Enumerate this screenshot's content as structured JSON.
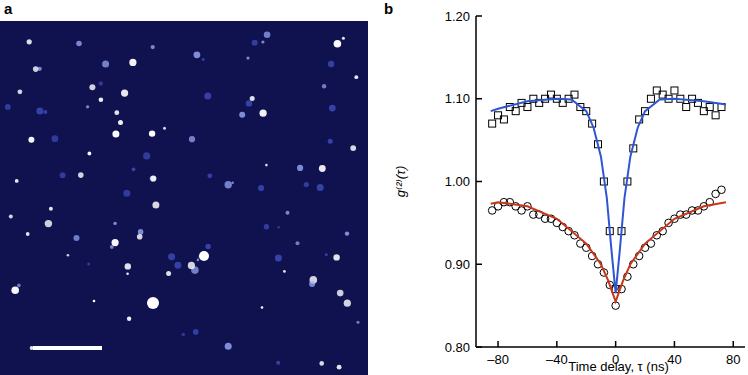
{
  "image_panel": {
    "label": "a"
  },
  "chart_data": {
    "type": "scatter",
    "panel_label": "b",
    "x_label": "Time delay, τ (ns)",
    "y_label": "g⁽²⁾(τ)",
    "xlim": [
      -95,
      88
    ],
    "ylim": [
      0.8,
      1.2
    ],
    "xticks": [
      {
        "value": -80,
        "label": "–80"
      },
      {
        "value": -40,
        "label": "–40"
      },
      0,
      40,
      80
    ],
    "yticks": [
      {
        "value": 0.8,
        "label": "0.80"
      },
      {
        "value": 0.9,
        "label": "0.90"
      },
      {
        "value": 1,
        "label": "1.00"
      },
      {
        "value": 1.1,
        "label": "1.10"
      },
      {
        "value": 1.2,
        "label": "1.20"
      }
    ],
    "grid": false,
    "series": [
      {
        "type": "scatter",
        "marker": "square",
        "color": "#000000",
        "x": [
          -84,
          -80,
          -76,
          -72,
          -68,
          -64,
          -60,
          -56,
          -52,
          -48,
          -44,
          -40,
          -36,
          -32,
          -28,
          -24,
          -20,
          -16,
          -12,
          -8,
          -4,
          0,
          4,
          8,
          12,
          16,
          20,
          24,
          28,
          32,
          36,
          40,
          44,
          48,
          52,
          56,
          60,
          64,
          68,
          72
        ],
        "values": [
          1.07,
          1.08,
          1.075,
          1.09,
          1.085,
          1.095,
          1.09,
          1.1,
          1.095,
          1.1,
          1.105,
          1.1,
          1.095,
          1.1,
          1.105,
          1.09,
          1.085,
          1.07,
          1.045,
          1.0,
          0.94,
          0.87,
          0.94,
          1.0,
          1.04,
          1.075,
          1.085,
          1.1,
          1.11,
          1.105,
          1.1,
          1.11,
          1.1,
          1.09,
          1.1,
          1.095,
          1.085,
          1.09,
          1.08,
          1.09
        ]
      },
      {
        "type": "scatter",
        "marker": "circle",
        "color": "#000000",
        "x": [
          -84,
          -80,
          -76,
          -72,
          -68,
          -64,
          -60,
          -56,
          -52,
          -48,
          -44,
          -40,
          -36,
          -32,
          -28,
          -24,
          -20,
          -16,
          -12,
          -8,
          -4,
          0,
          4,
          8,
          12,
          16,
          20,
          24,
          28,
          32,
          36,
          40,
          44,
          48,
          52,
          56,
          60,
          64,
          68,
          72
        ],
        "values": [
          0.965,
          0.97,
          0.975,
          0.975,
          0.97,
          0.965,
          0.97,
          0.96,
          0.96,
          0.955,
          0.955,
          0.95,
          0.945,
          0.94,
          0.935,
          0.925,
          0.92,
          0.91,
          0.9,
          0.89,
          0.875,
          0.85,
          0.87,
          0.885,
          0.9,
          0.91,
          0.92,
          0.925,
          0.935,
          0.94,
          0.95,
          0.955,
          0.96,
          0.96,
          0.965,
          0.965,
          0.97,
          0.975,
          0.985,
          0.99
        ]
      },
      {
        "type": "line",
        "line_style": "solid",
        "color": "#2f55d4",
        "x": [
          -85,
          -80,
          -60,
          -40,
          -30,
          -20,
          -15,
          -10,
          -6,
          -3,
          0,
          3,
          6,
          10,
          15,
          20,
          30,
          40,
          60,
          75
        ],
        "values": [
          1.085,
          1.088,
          1.097,
          1.1,
          1.099,
          1.085,
          1.065,
          1.03,
          0.98,
          0.92,
          0.865,
          0.92,
          0.98,
          1.03,
          1.065,
          1.085,
          1.099,
          1.1,
          1.097,
          1.093
        ]
      },
      {
        "type": "line",
        "line_style": "solid",
        "color": "#c8361c",
        "x": [
          -85,
          -80,
          -60,
          -40,
          -20,
          -10,
          -5,
          0,
          5,
          10,
          20,
          40,
          60,
          75
        ],
        "values": [
          0.973,
          0.975,
          0.97,
          0.955,
          0.925,
          0.9,
          0.88,
          0.855,
          0.88,
          0.9,
          0.925,
          0.955,
          0.97,
          0.975
        ]
      }
    ]
  }
}
